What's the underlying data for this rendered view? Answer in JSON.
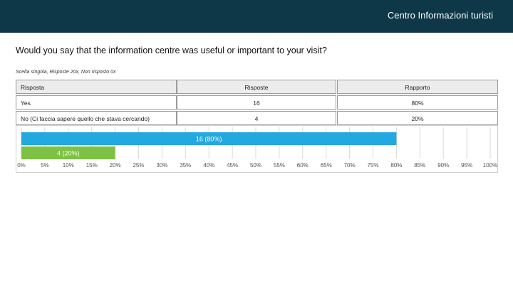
{
  "header": {
    "title": "Centro Informazioni turisti"
  },
  "question": "Would you say that the information centre was useful or important to your visit?",
  "meta": "Scelta singola, Risposte 20x, Non risposto 0x",
  "table": {
    "headers": [
      "Risposta",
      "Risposte",
      "Rapporto"
    ],
    "rows": [
      [
        "Yes",
        "16",
        "80%"
      ],
      [
        "No (Ci faccia sapere quello che stava cercando)",
        "4",
        "20%"
      ]
    ]
  },
  "chart_data": {
    "type": "bar",
    "orientation": "horizontal",
    "categories": [
      "Yes",
      "No (Ci faccia sapere quello che stava cercando)"
    ],
    "values": [
      80,
      20
    ],
    "counts": [
      16,
      4
    ],
    "data_labels": [
      "16 (80%)",
      "4 (20%)"
    ],
    "colors": [
      "#23a8e0",
      "#7dc242"
    ],
    "xlim": [
      0,
      100
    ],
    "xticks": [
      "0%",
      "5%",
      "10%",
      "15%",
      "20%",
      "25%",
      "30%",
      "35%",
      "40%",
      "45%",
      "50%",
      "55%",
      "60%",
      "65%",
      "70%",
      "75%",
      "80%",
      "85%",
      "90%",
      "95%",
      "100%"
    ],
    "grid": true
  }
}
